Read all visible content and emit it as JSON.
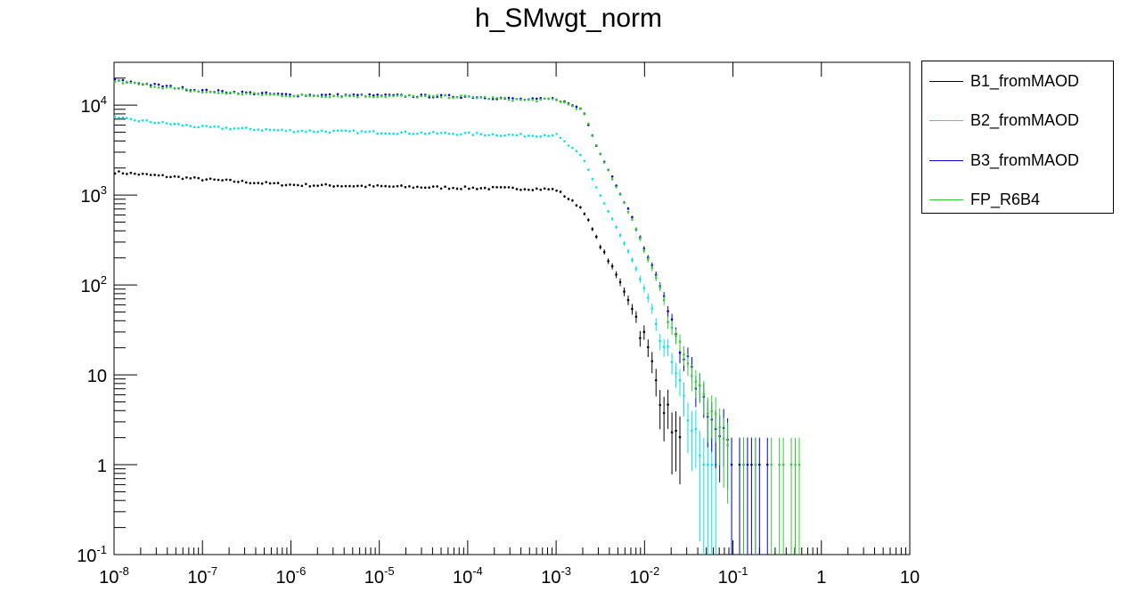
{
  "chart_data": {
    "type": "scatter",
    "title": "h_SMwgt_norm",
    "xlabel": "",
    "ylabel": "",
    "xscale": "log",
    "yscale": "log",
    "xlim": [
      1e-08,
      10
    ],
    "ylim": [
      0.1,
      30000
    ],
    "grid": false,
    "legend_position": "top-right, outside plot",
    "x_tick_labels": [
      "10^-8",
      "10^-7",
      "10^-6",
      "10^-5",
      "10^-4",
      "10^-3",
      "10^-2",
      "10^-1",
      "1",
      "10"
    ],
    "y_tick_labels": [
      "10^-1",
      "1",
      "10",
      "10^2",
      "10^3",
      "10^4"
    ],
    "series": [
      {
        "name": "B1_fromMAOD",
        "color": "#000000",
        "x": [
          1e-08,
          1e-07,
          1e-06,
          1e-05,
          0.0001,
          0.0005,
          0.001,
          0.002,
          0.003,
          0.005,
          0.007,
          0.01,
          0.015,
          0.02,
          0.03
        ],
        "y": [
          1800,
          1500,
          1300,
          1250,
          1200,
          1180,
          1150,
          700,
          300,
          120,
          60,
          25,
          6,
          3,
          1
        ]
      },
      {
        "name": "B2_fromMAOD",
        "color": "#00e5e5",
        "x": [
          1e-08,
          1e-07,
          1e-06,
          1e-05,
          0.0001,
          0.0005,
          0.001,
          0.002,
          0.003,
          0.005,
          0.007,
          0.01,
          0.015,
          0.02,
          0.03,
          0.05,
          0.08
        ],
        "y": [
          7200,
          5700,
          5200,
          5000,
          4800,
          4600,
          4700,
          2600,
          1100,
          400,
          200,
          90,
          30,
          13,
          4,
          1,
          1
        ]
      },
      {
        "name": "B3_fromMAOD",
        "color": "#0000cc",
        "x": [
          1e-08,
          1e-07,
          1e-06,
          1e-05,
          0.0001,
          0.0005,
          0.001,
          0.002,
          0.003,
          0.005,
          0.007,
          0.01,
          0.015,
          0.02,
          0.03,
          0.05,
          0.08,
          0.1,
          0.15,
          0.25
        ],
        "y": [
          19000,
          14500,
          13000,
          12800,
          12500,
          11500,
          11800,
          9000,
          3200,
          1200,
          600,
          250,
          100,
          40,
          15,
          4,
          2,
          1,
          1,
          1
        ]
      },
      {
        "name": "FP_R6B4",
        "color": "#33cc33",
        "x": [
          1e-08,
          1e-07,
          1e-06,
          1e-05,
          0.0001,
          0.0005,
          0.001,
          0.002,
          0.003,
          0.005,
          0.007,
          0.01,
          0.015,
          0.02,
          0.03,
          0.05,
          0.08,
          0.1,
          0.15,
          0.25,
          0.6
        ],
        "y": [
          18500,
          14000,
          12800,
          12600,
          12400,
          11300,
          11600,
          8800,
          3100,
          1150,
          580,
          240,
          95,
          38,
          14,
          4,
          2,
          1,
          1,
          1,
          1
        ]
      }
    ]
  }
}
